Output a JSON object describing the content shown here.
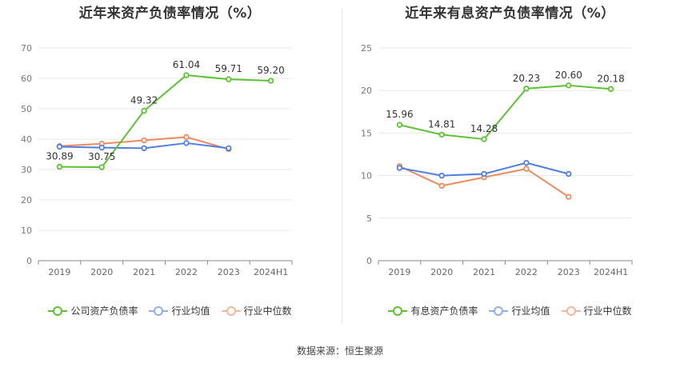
{
  "source": "数据来源：恒生聚源",
  "colors": {
    "series1": "#5cc330",
    "series2": "#4f7fe0",
    "series3": "#f08a5d"
  },
  "chart_data": [
    {
      "type": "line",
      "title": "近年来资产负债率情况（%）",
      "categories": [
        "2019",
        "2020",
        "2021",
        "2022",
        "2023",
        "2024H1"
      ],
      "ylim": [
        0,
        70
      ],
      "yticks": [
        0,
        10,
        20,
        30,
        40,
        50,
        60,
        70
      ],
      "series": [
        {
          "name": "公司资产负债率",
          "values": [
            30.89,
            30.75,
            49.32,
            61.04,
            59.71,
            59.2
          ],
          "labels": [
            "30.89",
            "30.75",
            "49.32",
            "61.04",
            "59.71",
            "59.20"
          ]
        },
        {
          "name": "行业均值",
          "values": [
            37.5,
            37.2,
            37.0,
            38.7,
            37.0,
            null
          ]
        },
        {
          "name": "行业中位数",
          "values": [
            37.7,
            38.5,
            39.6,
            40.7,
            36.7,
            null
          ]
        }
      ]
    },
    {
      "type": "line",
      "title": "近年来有息资产负债率情况（%）",
      "categories": [
        "2019",
        "2020",
        "2021",
        "2022",
        "2023",
        "2024H1"
      ],
      "ylim": [
        0,
        25
      ],
      "yticks": [
        0,
        5,
        10,
        15,
        20,
        25
      ],
      "series": [
        {
          "name": "有息资产负债率",
          "values": [
            15.96,
            14.81,
            14.28,
            20.23,
            20.6,
            20.18
          ],
          "labels": [
            "15.96",
            "14.81",
            "14.28",
            "20.23",
            "20.60",
            "20.18"
          ]
        },
        {
          "name": "行业均值",
          "values": [
            10.9,
            10.0,
            10.2,
            11.5,
            10.2,
            null
          ]
        },
        {
          "name": "行业中位数",
          "values": [
            11.1,
            8.8,
            9.8,
            10.8,
            7.5,
            null
          ]
        }
      ]
    }
  ]
}
